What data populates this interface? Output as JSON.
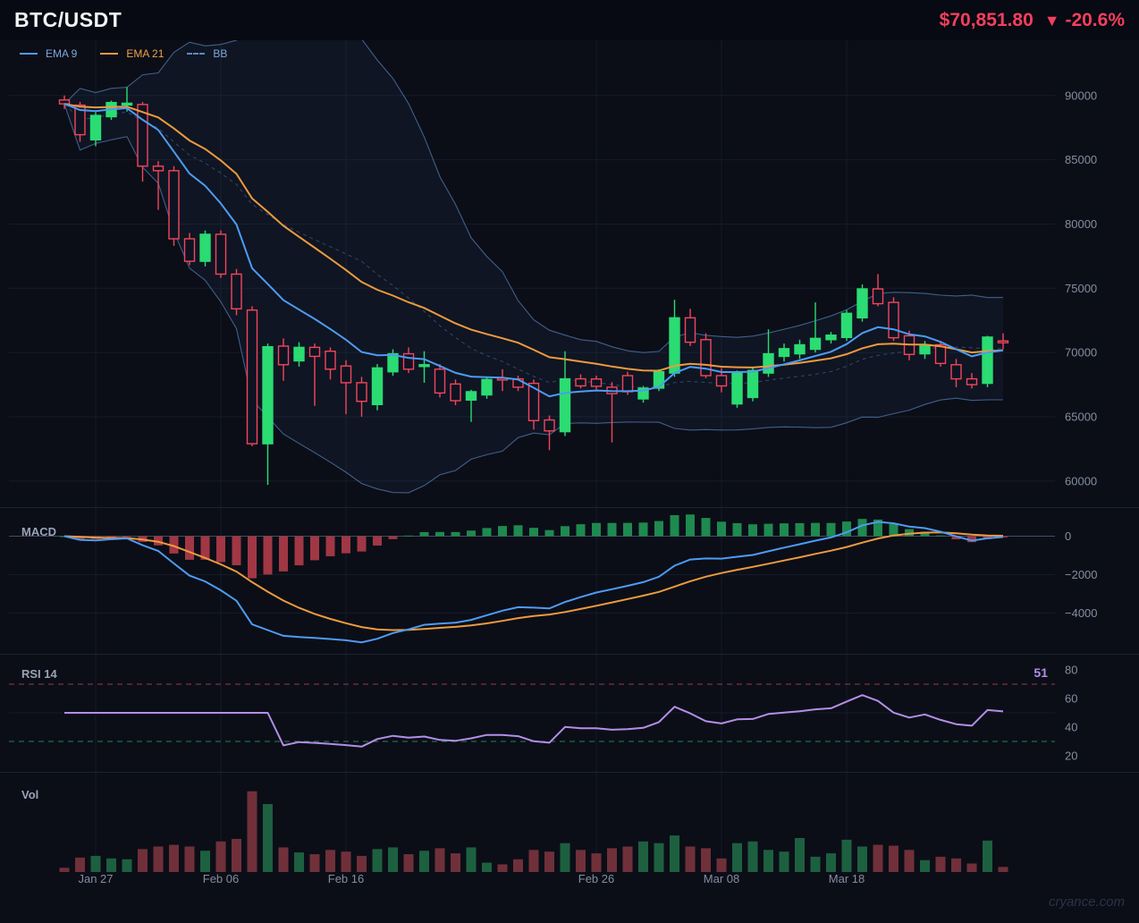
{
  "header": {
    "symbol": "BTC/USDT",
    "price": "$70,851.80",
    "change_icon": "▼",
    "change_pct": "-20.6%"
  },
  "legend": [
    {
      "label": "EMA 9",
      "text_color": "#7fa7dc",
      "line_color": "#4e9bf5",
      "dashed": false
    },
    {
      "label": "EMA 21",
      "text_color": "#ef9f4a",
      "line_color": "#ee9a3f",
      "dashed": false
    },
    {
      "label": "BB",
      "text_color": "#7fa7dc",
      "line_color": "#5c88c8",
      "dashed": true
    }
  ],
  "watermark": "cryance.com",
  "panes": {
    "macd_label": "MACD",
    "rsi_label": "RSI 14",
    "vol_label": "Vol",
    "rsi_value": "51"
  },
  "axes": {
    "price_ticks": [
      90000,
      85000,
      80000,
      75000,
      70000,
      65000,
      60000
    ],
    "macd_ticks": [
      {
        "label": "0",
        "value": 0
      },
      {
        "label": "−2000",
        "value": -2000
      },
      {
        "label": "−4000",
        "value": -4000
      }
    ],
    "rsi_ticks": [
      80,
      60,
      40,
      20
    ],
    "x_labels": [
      {
        "label": "Jan 27",
        "index": 2
      },
      {
        "label": "Feb 06",
        "index": 10
      },
      {
        "label": "Feb 16",
        "index": 18
      },
      {
        "label": "Feb 26",
        "index": 34
      },
      {
        "label": "Mar 08",
        "index": 42
      },
      {
        "label": "Mar 18",
        "index": 50
      }
    ]
  },
  "chart_data": {
    "type": "candlestick",
    "symbol": "BTC/USDT",
    "last_price": 70851.8,
    "change_pct": -20.6,
    "price_range": [
      58100,
      94300
    ],
    "indicators": {
      "ema_fast": 9,
      "ema_slow": 21,
      "bb_period": 20,
      "bb_mult": 2,
      "macd_params": [
        12,
        26,
        9
      ],
      "rsi_period": 14,
      "rsi_last": 51,
      "rsi_overbought": 70,
      "rsi_oversold": 30
    },
    "candles": [
      [
        89650,
        90000,
        88950,
        89350
      ],
      [
        89250,
        89500,
        86400,
        86950
      ],
      [
        86550,
        88700,
        86050,
        88450
      ],
      [
        88350,
        89600,
        88100,
        89450
      ],
      [
        89300,
        90650,
        88750,
        89400
      ],
      [
        89300,
        89500,
        83300,
        84500
      ],
      [
        84500,
        84900,
        81100,
        84150
      ],
      [
        84150,
        84500,
        78300,
        78850
      ],
      [
        78850,
        79300,
        76800,
        77100
      ],
      [
        77100,
        79500,
        76700,
        79200
      ],
      [
        79200,
        79500,
        75800,
        76100
      ],
      [
        76100,
        76500,
        72900,
        73400
      ],
      [
        73300,
        73600,
        62700,
        62900
      ],
      [
        62900,
        70700,
        59700,
        70450
      ],
      [
        70500,
        71100,
        67800,
        69050
      ],
      [
        69350,
        70800,
        68900,
        70400
      ],
      [
        70400,
        70700,
        65850,
        69700
      ],
      [
        70100,
        70400,
        67900,
        68700
      ],
      [
        68950,
        69400,
        65200,
        67650
      ],
      [
        67650,
        68100,
        65000,
        66200
      ],
      [
        65950,
        69100,
        65500,
        68800
      ],
      [
        68500,
        70250,
        68200,
        69900
      ],
      [
        69900,
        70400,
        68400,
        68700
      ],
      [
        68950,
        70100,
        67650,
        69050
      ],
      [
        68700,
        69100,
        66500,
        66850
      ],
      [
        67550,
        67900,
        65900,
        66250
      ],
      [
        66300,
        67100,
        64600,
        66950
      ],
      [
        66700,
        68100,
        66400,
        67900
      ],
      [
        68000,
        68700,
        67000,
        67900
      ],
      [
        67950,
        68200,
        67000,
        67300
      ],
      [
        67600,
        67900,
        64000,
        64700
      ],
      [
        64750,
        65100,
        62400,
        63900
      ],
      [
        63840,
        70100,
        63500,
        67950
      ],
      [
        67950,
        68300,
        67200,
        67400
      ],
      [
        67940,
        68200,
        67100,
        67370
      ],
      [
        67300,
        67700,
        63000,
        66800
      ],
      [
        68200,
        68500,
        66700,
        66950
      ],
      [
        66390,
        67400,
        66100,
        67230
      ],
      [
        67230,
        68700,
        67000,
        68500
      ],
      [
        68400,
        74100,
        68100,
        72700
      ],
      [
        72700,
        73400,
        70500,
        70800
      ],
      [
        71000,
        71500,
        68000,
        68200
      ],
      [
        68200,
        68800,
        66900,
        67400
      ],
      [
        66000,
        68600,
        65700,
        68500
      ],
      [
        66500,
        68900,
        66200,
        68600
      ],
      [
        68400,
        71800,
        68100,
        69900
      ],
      [
        69700,
        70700,
        69300,
        70300
      ],
      [
        69900,
        71000,
        69500,
        70600
      ],
      [
        70250,
        73900,
        70000,
        71100
      ],
      [
        71000,
        71600,
        70700,
        71350
      ],
      [
        71170,
        73300,
        70900,
        73050
      ],
      [
        72700,
        75300,
        72400,
        74950
      ],
      [
        74950,
        76100,
        73600,
        73800
      ],
      [
        73900,
        74300,
        70900,
        71150
      ],
      [
        71300,
        71700,
        69400,
        69850
      ],
      [
        69900,
        70900,
        69500,
        70600
      ],
      [
        70600,
        70900,
        68900,
        69150
      ],
      [
        69050,
        69500,
        67300,
        67950
      ],
      [
        67950,
        68400,
        67200,
        67500
      ],
      [
        67600,
        71300,
        67300,
        71200
      ],
      [
        70900,
        71500,
        70250,
        70850
      ]
    ],
    "volume": [
      5,
      17,
      19,
      16,
      15,
      27,
      30,
      32,
      30,
      25,
      36,
      39,
      95,
      80,
      29,
      23,
      21,
      26,
      24,
      19,
      27,
      29,
      21,
      25,
      28,
      22,
      29,
      11,
      9,
      15,
      26,
      24,
      34,
      26,
      22,
      28,
      30,
      36,
      34,
      43,
      30,
      28,
      16,
      34,
      36,
      26,
      24,
      40,
      18,
      22,
      38,
      30,
      32,
      31,
      26,
      14,
      18,
      16,
      10,
      37,
      6
    ]
  },
  "colors": {
    "bg": "#0b0e17",
    "header_bg": "#070a12",
    "up": "#2bdc72",
    "down": "#f4455c",
    "hollow_fill": "#0e1322",
    "ema9": "#4e9bf5",
    "ema21": "#ee9a3f",
    "bb_line": "#5c88c8",
    "bb_fill": "rgba(66,114,189,0.07)",
    "macd_line": "#4e9bf5",
    "signal_line": "#ee9a3f",
    "hist_up": "#1e8a4f",
    "hist_down": "#a13744",
    "vol_up": "#1d6040",
    "vol_down": "#70303a",
    "rsi_line": "#b48ee6",
    "overbought": "#c24459",
    "oversold": "#27a36e",
    "axis_text": "#848da0",
    "pane_label": "#9aa3b6",
    "grid": "#151b2a",
    "separator": "#1b2232",
    "zero_line": "#434d66",
    "price_text": "#f43f5e"
  }
}
